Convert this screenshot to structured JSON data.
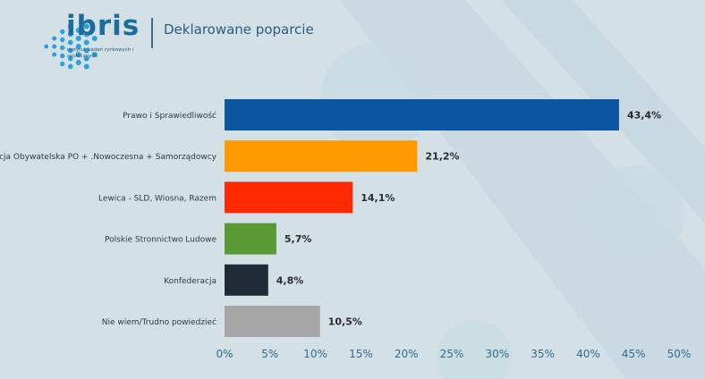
{
  "header": {
    "brand": "ibris",
    "brand_sub": "instytut badań rynkowych i społecznych",
    "title": "Deklarowane poparcie"
  },
  "colors": {
    "background": "#d3e0e6",
    "brand": "#1d6d9c"
  },
  "chart_data": {
    "type": "bar",
    "orientation": "horizontal",
    "categories": [
      "Prawo i Sprawiedliwość",
      "Koalicja Obywatelska PO + .Nowoczesna + Samorządowcy",
      "Lewica - SLD, Wiosna, Razem",
      "Polskie Stronnictwo Ludowe",
      "Konfederacja",
      "Nie wiem/Trudno powiedzieć"
    ],
    "values": [
      43.4,
      21.2,
      14.1,
      5.7,
      4.8,
      10.5
    ],
    "value_labels": [
      "43,4%",
      "21,2%",
      "14,1%",
      "5,7%",
      "4,8%",
      "10,5%"
    ],
    "bar_colors": [
      "#0c56a0",
      "#ff9a00",
      "#ff2a00",
      "#5a9a35",
      "#202a36",
      "#a6a6a6"
    ],
    "xlim": [
      0,
      50
    ],
    "x_ticks": [
      "0%",
      "5%",
      "10%",
      "15%",
      "20%",
      "25%",
      "30%",
      "35%",
      "40%",
      "45%",
      "50%"
    ],
    "grid": false,
    "title": "",
    "xlabel": "",
    "ylabel": ""
  }
}
